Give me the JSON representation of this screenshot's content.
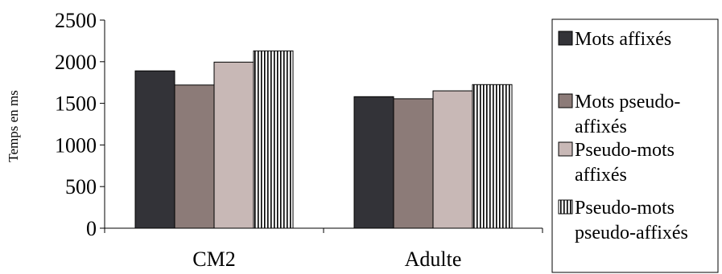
{
  "chart_data": {
    "type": "bar",
    "title": "",
    "xlabel": "",
    "ylabel": "Temps en ms",
    "ylim": [
      0,
      2500
    ],
    "yticks": [
      0,
      500,
      1000,
      1500,
      2000,
      2500
    ],
    "categories": [
      "CM2",
      "Adulte"
    ],
    "grid": false,
    "legend_position": "right",
    "series": [
      {
        "name": "Mots affixés",
        "label_lines": [
          "Mots affixés"
        ],
        "values": [
          1890,
          1580
        ],
        "color": "#333338",
        "pattern": "solid"
      },
      {
        "name": "Mots pseudo-affixés",
        "label_lines": [
          "Mots pseudo-",
          "affixés"
        ],
        "values": [
          1720,
          1555
        ],
        "color": "#8c7b78",
        "pattern": "solid"
      },
      {
        "name": "Pseudo-mots affixés",
        "label_lines": [
          "Pseudo-mots",
          "affixés"
        ],
        "values": [
          1995,
          1650
        ],
        "color": "#c8b8b6",
        "pattern": "solid"
      },
      {
        "name": "Pseudo-mots pseudo-affixés",
        "label_lines": [
          "Pseudo-mots",
          "pseudo-affixés"
        ],
        "values": [
          2130,
          1725
        ],
        "color": "#ffffff",
        "pattern": "vertical-stripes"
      }
    ]
  }
}
